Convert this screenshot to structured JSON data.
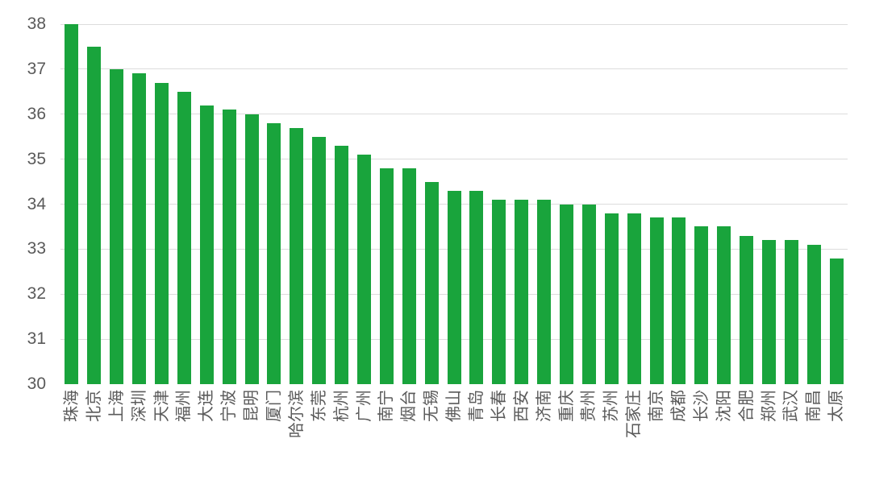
{
  "chart_data": {
    "type": "bar",
    "title": "",
    "categories": [
      "珠海",
      "北京",
      "上海",
      "深圳",
      "天津",
      "福州",
      "大连",
      "宁波",
      "昆明",
      "厦门",
      "哈尔滨",
      "东莞",
      "杭州",
      "广州",
      "南宁",
      "烟台",
      "无锡",
      "佛山",
      "青岛",
      "长春",
      "西安",
      "济南",
      "重庆",
      "贵州",
      "苏州",
      "石家庄",
      "南京",
      "成都",
      "长沙",
      "沈阳",
      "合肥",
      "郑州",
      "武汉",
      "南昌",
      "太原"
    ],
    "values": [
      38,
      37.5,
      37,
      36.9,
      36.7,
      36.5,
      36.2,
      36.1,
      36,
      35.8,
      35.7,
      35.5,
      35.3,
      35.1,
      34.8,
      34.8,
      34.5,
      34.3,
      34.3,
      34.1,
      34.1,
      34.1,
      34,
      34,
      33.8,
      33.8,
      33.7,
      33.7,
      33.5,
      33.5,
      33.3,
      33.2,
      33.2,
      33.1,
      32.8
    ],
    "xlabel": "",
    "ylabel": "",
    "ylim": [
      30,
      38
    ],
    "yticks": [
      30,
      31,
      32,
      33,
      34,
      35,
      36,
      37,
      38
    ],
    "grid": true,
    "legend_position": "none",
    "bar_color": "#19A43C",
    "grid_color": "#DCDCDC",
    "tick_label_color": "#5A5A5A"
  }
}
